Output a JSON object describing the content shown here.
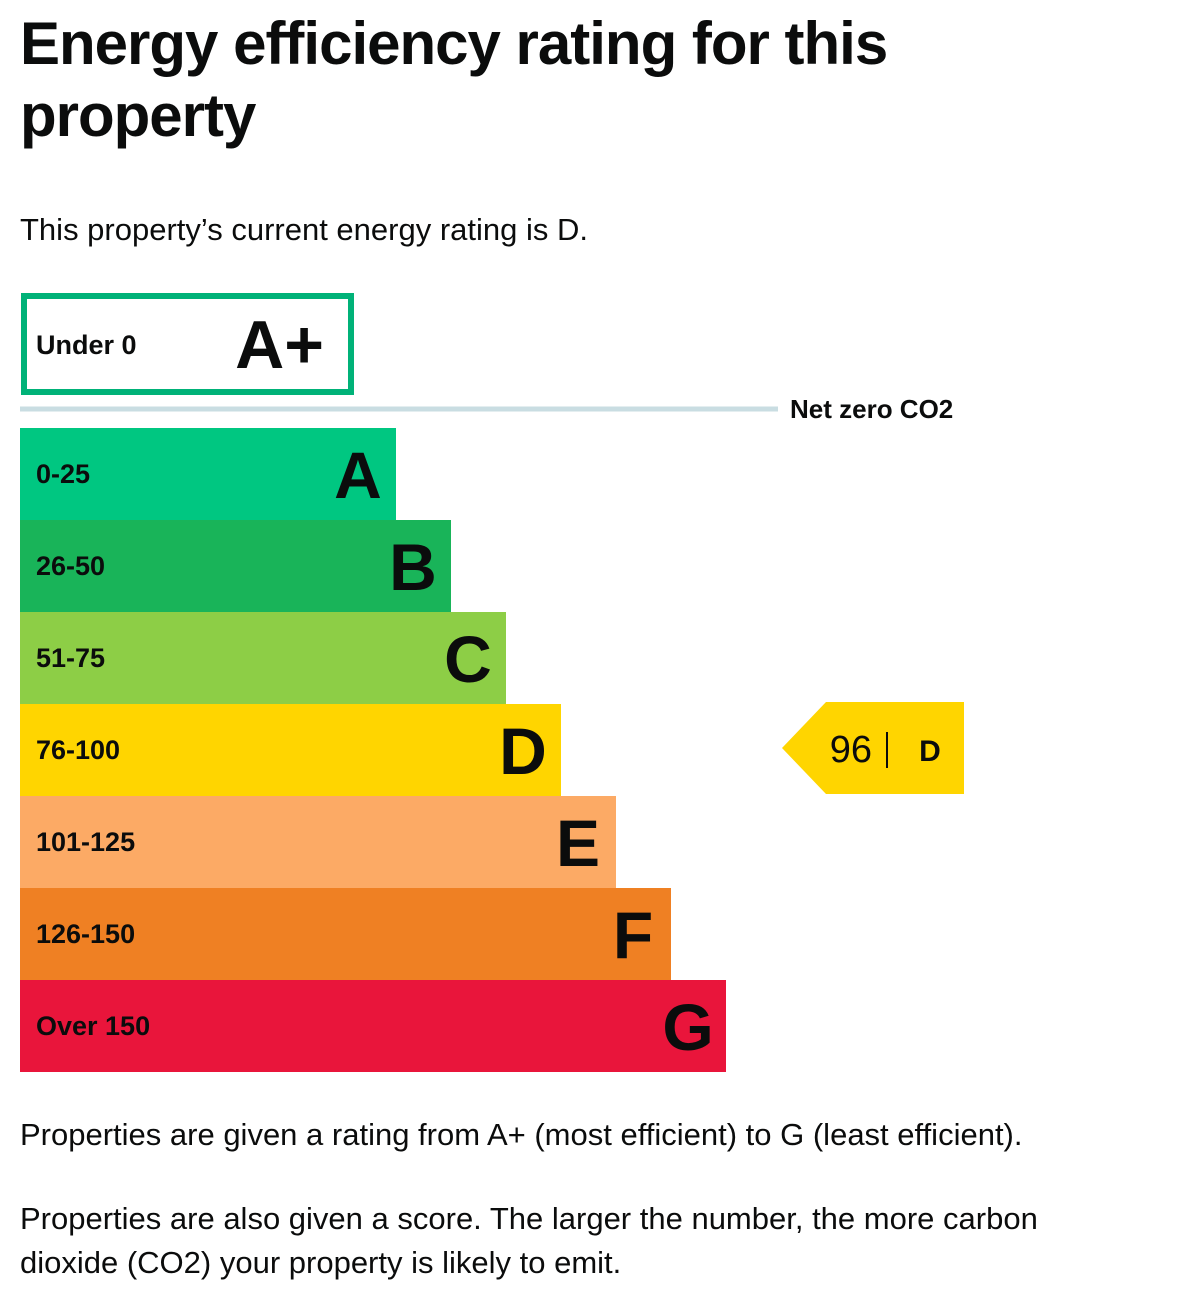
{
  "page": {
    "title": "Energy efficiency rating for this property",
    "intro": "This property’s current energy rating is D.",
    "footnote_1": "Properties are given a rating from A+ (most efficient) to G (least efficient).",
    "footnote_2": "Properties are also given a score. The larger the number, the more carbon dioxide (CO2) your property is likely to emit."
  },
  "chart_data": {
    "type": "bar",
    "orientation": "horizontal",
    "top_band": {
      "range": "Under 0",
      "letter": "A+",
      "color": "#00b278",
      "style": "outline"
    },
    "divider_label": "Net zero CO2",
    "bands": [
      {
        "range": "0-25",
        "letter": "A",
        "color": "#00c781"
      },
      {
        "range": "26-50",
        "letter": "B",
        "color": "#19b459"
      },
      {
        "range": "51-75",
        "letter": "C",
        "color": "#8dce46"
      },
      {
        "range": "76-100",
        "letter": "D",
        "color": "#ffd500"
      },
      {
        "range": "101-125",
        "letter": "E",
        "color": "#fcaa65"
      },
      {
        "range": "126-150",
        "letter": "F",
        "color": "#ef8023"
      },
      {
        "range": "Over 150",
        "letter": "G",
        "color": "#e9153b"
      }
    ],
    "current": {
      "score": "96",
      "letter": "D",
      "color": "#ffd500"
    },
    "divider_color": "#c9dde2"
  }
}
